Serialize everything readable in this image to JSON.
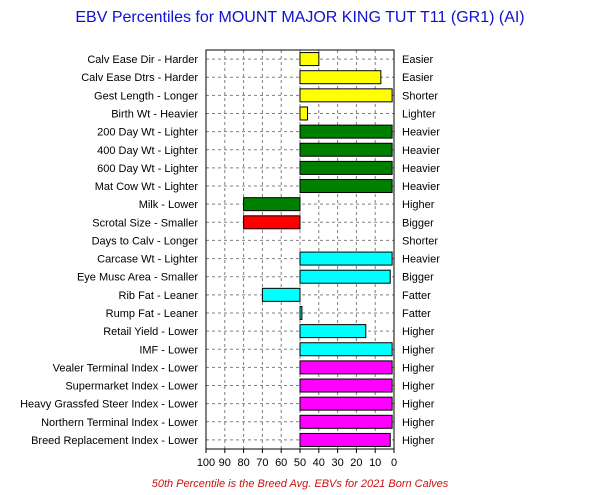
{
  "chart_data": {
    "type": "bar",
    "orientation": "horizontal",
    "title": "EBV Percentiles for MOUNT MAJOR KING TUT T11 (GR1) (AI)",
    "footnote": "50th Percentile is the Breed Avg. EBVs for 2021 Born Calves",
    "x_ticks": [
      100,
      90,
      80,
      70,
      60,
      50,
      40,
      30,
      20,
      10,
      0
    ],
    "xlim": [
      100,
      0
    ],
    "baseline": 50,
    "grid": true,
    "categories": [
      {
        "left": "Calv Ease Dir - Harder",
        "right": "Easier",
        "value": 40,
        "color": "#ffff00"
      },
      {
        "left": "Calv Ease Dtrs - Harder",
        "right": "Easier",
        "value": 7,
        "color": "#ffff00"
      },
      {
        "left": "Gest Length - Longer",
        "right": "Shorter",
        "value": 1,
        "color": "#ffff00"
      },
      {
        "left": "Birth Wt - Heavier",
        "right": "Lighter",
        "value": 46,
        "color": "#ffff00"
      },
      {
        "left": "200 Day Wt - Lighter",
        "right": "Heavier",
        "value": 1,
        "color": "#008000"
      },
      {
        "left": "400 Day Wt - Lighter",
        "right": "Heavier",
        "value": 1,
        "color": "#008000"
      },
      {
        "left": "600 Day Wt - Lighter",
        "right": "Heavier",
        "value": 1,
        "color": "#008000"
      },
      {
        "left": "Mat Cow Wt - Lighter",
        "right": "Heavier",
        "value": 1,
        "color": "#008000"
      },
      {
        "left": "Milk - Lower",
        "right": "Higher",
        "value": 80,
        "color": "#008000"
      },
      {
        "left": "Scrotal Size - Smaller",
        "right": "Bigger",
        "value": 80,
        "color": "#ff0000"
      },
      {
        "left": "Days to Calv - Longer",
        "right": "Shorter",
        "value": 50,
        "color": "#ffffff"
      },
      {
        "left": "Carcase Wt - Lighter",
        "right": "Heavier",
        "value": 1,
        "color": "#00ffff"
      },
      {
        "left": "Eye Musc Area - Smaller",
        "right": "Bigger",
        "value": 2,
        "color": "#00ffff"
      },
      {
        "left": "Rib Fat - Leaner",
        "right": "Fatter",
        "value": 70,
        "color": "#00ffff"
      },
      {
        "left": "Rump Fat - Leaner",
        "right": "Fatter",
        "value": 49,
        "color": "#00ffff"
      },
      {
        "left": "Retail Yield - Lower",
        "right": "Higher",
        "value": 15,
        "color": "#00ffff"
      },
      {
        "left": "IMF - Lower",
        "right": "Higher",
        "value": 1,
        "color": "#00ffff"
      },
      {
        "left": "Vealer Terminal Index - Lower",
        "right": "Higher",
        "value": 1,
        "color": "#ff00ff"
      },
      {
        "left": "Supermarket Index - Lower",
        "right": "Higher",
        "value": 1,
        "color": "#ff00ff"
      },
      {
        "left": "Heavy Grassfed Steer Index - Lower",
        "right": "Higher",
        "value": 1,
        "color": "#ff00ff"
      },
      {
        "left": "Northern Terminal Index - Lower",
        "right": "Higher",
        "value": 1,
        "color": "#ff00ff"
      },
      {
        "left": "Breed Replacement Index - Lower",
        "right": "Higher",
        "value": 2,
        "color": "#ff00ff"
      }
    ]
  }
}
